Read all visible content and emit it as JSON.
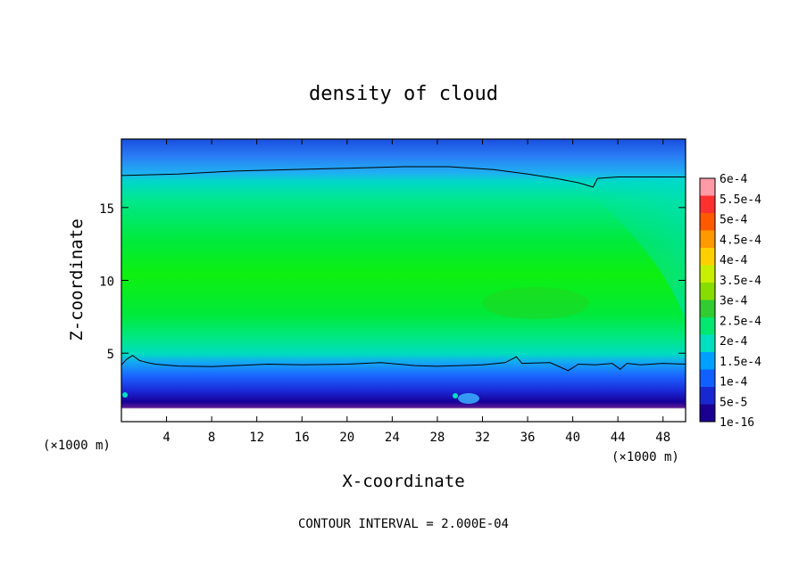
{
  "chart_data": {
    "type": "heatmap",
    "title": "density of cloud",
    "xlabel": "X-coordinate",
    "ylabel": "Z-coordinate",
    "x_unit": "(×1000 m)",
    "xlim": [
      0,
      50
    ],
    "ylim": [
      0.3,
      19.7
    ],
    "x_ticks": [
      4,
      8,
      12,
      16,
      20,
      24,
      28,
      32,
      36,
      40,
      44,
      48
    ],
    "y_ticks": [
      5,
      10,
      15
    ],
    "colorbar": {
      "labels": [
        "6e-4",
        "5.5e-4",
        "5e-4",
        "4.5e-4",
        "4e-4",
        "3.5e-4",
        "3e-4",
        "2.5e-4",
        "2e-4",
        "1.5e-4",
        "1e-4",
        "5e-5",
        "1e-16"
      ],
      "colors": [
        "#ff9aa6",
        "#ff3030",
        "#ff5a00",
        "#ff9900",
        "#ffd000",
        "#c8ee00",
        "#88dd00",
        "#30cc30",
        "#00e870",
        "#00e0c0",
        "#00a0ff",
        "#1060ff",
        "#1828d0",
        "#1a0090"
      ]
    },
    "contour_lines": [
      {
        "level": 0.0002,
        "points": [
          [
            0,
            17.2
          ],
          [
            5,
            17.3
          ],
          [
            10,
            17.5
          ],
          [
            15,
            17.6
          ],
          [
            20,
            17.7
          ],
          [
            25,
            17.8
          ],
          [
            29,
            17.8
          ],
          [
            33,
            17.6
          ],
          [
            36,
            17.3
          ],
          [
            38.5,
            17.0
          ],
          [
            40.5,
            16.7
          ],
          [
            41.8,
            16.4
          ],
          [
            42.2,
            17.0
          ],
          [
            44,
            17.1
          ],
          [
            47,
            17.1
          ],
          [
            50,
            17.1
          ]
        ]
      },
      {
        "level": 0.0002,
        "points": [
          [
            0,
            4.2
          ],
          [
            0.5,
            4.6
          ],
          [
            1,
            4.85
          ],
          [
            1.6,
            4.5
          ],
          [
            2.3,
            4.35
          ],
          [
            3,
            4.25
          ],
          [
            5,
            4.12
          ],
          [
            8,
            4.08
          ],
          [
            11,
            4.18
          ],
          [
            13,
            4.25
          ],
          [
            16,
            4.2
          ],
          [
            20,
            4.25
          ],
          [
            23,
            4.35
          ],
          [
            26,
            4.15
          ],
          [
            28,
            4.1
          ],
          [
            30,
            4.15
          ],
          [
            32,
            4.2
          ],
          [
            34,
            4.35
          ],
          [
            35,
            4.75
          ],
          [
            35.5,
            4.3
          ],
          [
            38,
            4.35
          ],
          [
            39.6,
            3.8
          ],
          [
            40.5,
            4.25
          ],
          [
            42,
            4.2
          ],
          [
            43.5,
            4.3
          ],
          [
            44.2,
            3.9
          ],
          [
            44.8,
            4.3
          ],
          [
            46,
            4.2
          ],
          [
            48,
            4.3
          ],
          [
            50,
            4.25
          ]
        ]
      }
    ]
  },
  "footer": "CONTOUR INTERVAL = 2.000E-04"
}
